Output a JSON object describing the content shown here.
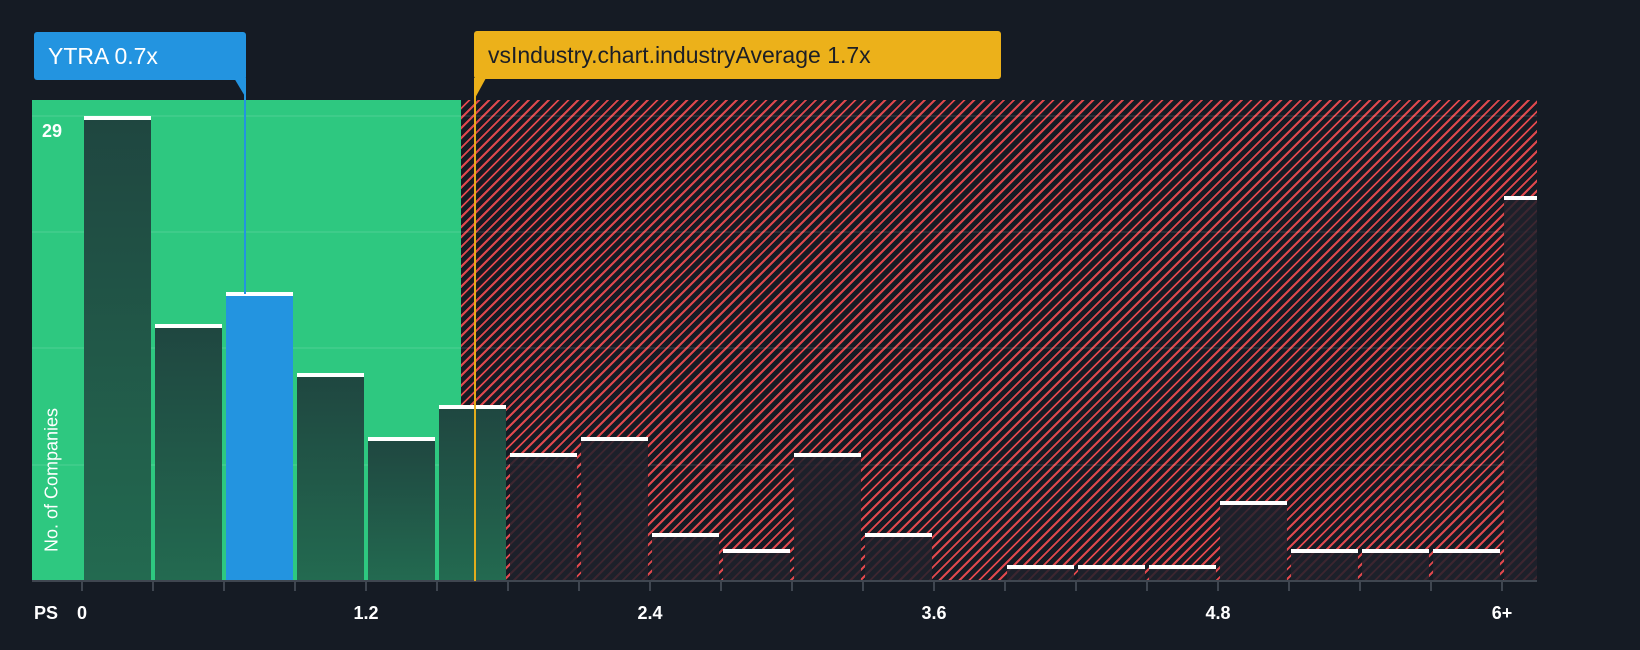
{
  "chart_data": {
    "type": "bar",
    "title": "",
    "xlabel": "PS",
    "ylabel": "No. of Companies",
    "x_tick_labels": [
      "0",
      "1.2",
      "2.4",
      "3.6",
      "4.8",
      "6+"
    ],
    "bin_width": 0.3,
    "categories": [
      "0-0.3",
      "0.3-0.6",
      "0.6-0.9",
      "0.9-1.2",
      "1.2-1.5",
      "1.5-1.8",
      "1.8-2.1",
      "2.1-2.4",
      "2.4-2.7",
      "2.7-3.0",
      "3.0-3.3",
      "3.3-3.6",
      "3.6-3.9",
      "3.9-4.2",
      "4.2-4.5",
      "4.5-4.8",
      "4.8-5.1",
      "5.1-5.4",
      "5.4-5.7",
      "5.7-6.0",
      "6+"
    ],
    "values": [
      29,
      16,
      18,
      13,
      9,
      11,
      8,
      9,
      3,
      2,
      8,
      3,
      0,
      1,
      1,
      1,
      5,
      2,
      2,
      2,
      24
    ],
    "highlighted_index": 2,
    "ylim": [
      0,
      29
    ],
    "y_max_label": "29",
    "grid": true,
    "annotations": [
      {
        "label": "YTRA 0.7x",
        "x": 0.7,
        "color": "#2394e0"
      },
      {
        "label": "vsIndustry.chart.industryAverage 1.7x",
        "x": 1.7,
        "color": "#ecb11a"
      }
    ],
    "zones": [
      {
        "name": "below-industry",
        "from": 0,
        "to": 1.6,
        "color": "#2ec880"
      },
      {
        "name": "above-industry",
        "from": 1.6,
        "to": 6.3,
        "color": "#e0484d",
        "pattern": "hatched"
      }
    ]
  },
  "callouts": {
    "company": "YTRA 0.7x",
    "industry": "vsIndustry.chart.industryAverage 1.7x"
  },
  "axis": {
    "x_title": "PS",
    "y_title": "No. of Companies",
    "y_max": "29",
    "ticks": [
      "0",
      "1.2",
      "2.4",
      "3.6",
      "4.8",
      "6+"
    ]
  },
  "colors": {
    "background": "#151b24",
    "green_zone": "#2ec880",
    "red_hatch": "#e0484d",
    "company": "#2394e0",
    "industry": "#ecb11a"
  }
}
